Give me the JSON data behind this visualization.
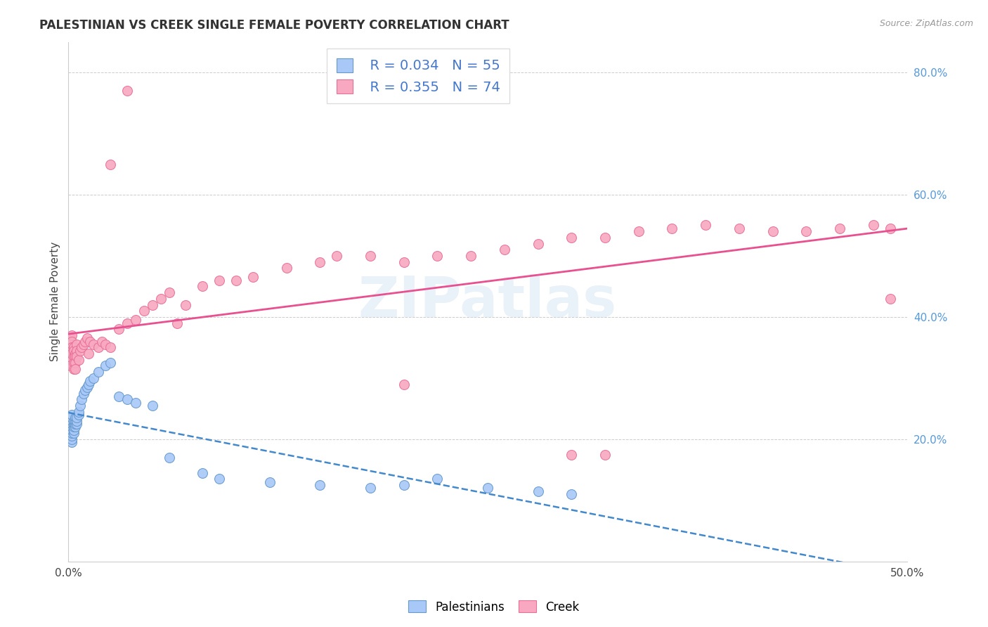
{
  "title": "PALESTINIAN VS CREEK SINGLE FEMALE POVERTY CORRELATION CHART",
  "source": "Source: ZipAtlas.com",
  "ylabel": "Single Female Poverty",
  "right_ytick_vals": [
    0.2,
    0.4,
    0.6,
    0.8
  ],
  "right_ytick_labels": [
    "20.0%",
    "40.0%",
    "60.0%",
    "80.0%"
  ],
  "xlim": [
    0.0,
    0.5
  ],
  "ylim": [
    0.0,
    0.85
  ],
  "palestinians_color": "#a8c8f8",
  "creek_color": "#f8a8c0",
  "palestinians_edge_color": "#6699cc",
  "creek_edge_color": "#e87098",
  "palestinians_line_color": "#4488cc",
  "creek_line_color": "#e85090",
  "watermark": "ZIPatlas",
  "legend_line1": "R = 0.034   N = 55",
  "legend_line2": "R = 0.355   N = 74",
  "pal_x": [
    0.001,
    0.001,
    0.001,
    0.001,
    0.001,
    0.002,
    0.002,
    0.002,
    0.002,
    0.002,
    0.002,
    0.002,
    0.002,
    0.002,
    0.002,
    0.003,
    0.003,
    0.003,
    0.003,
    0.003,
    0.004,
    0.004,
    0.004,
    0.004,
    0.005,
    0.005,
    0.005,
    0.006,
    0.006,
    0.007,
    0.008,
    0.009,
    0.01,
    0.011,
    0.012,
    0.013,
    0.015,
    0.018,
    0.022,
    0.025,
    0.03,
    0.035,
    0.04,
    0.05,
    0.06,
    0.08,
    0.09,
    0.12,
    0.15,
    0.18,
    0.2,
    0.22,
    0.25,
    0.28,
    0.3
  ],
  "pal_y": [
    0.215,
    0.22,
    0.225,
    0.23,
    0.235,
    0.195,
    0.2,
    0.205,
    0.21,
    0.215,
    0.22,
    0.225,
    0.23,
    0.235,
    0.24,
    0.21,
    0.215,
    0.22,
    0.225,
    0.23,
    0.22,
    0.225,
    0.23,
    0.235,
    0.225,
    0.23,
    0.235,
    0.24,
    0.245,
    0.255,
    0.265,
    0.275,
    0.28,
    0.285,
    0.29,
    0.295,
    0.3,
    0.31,
    0.32,
    0.325,
    0.27,
    0.265,
    0.26,
    0.255,
    0.17,
    0.145,
    0.135,
    0.13,
    0.125,
    0.12,
    0.125,
    0.135,
    0.12,
    0.115,
    0.11
  ],
  "creek_x": [
    0.001,
    0.001,
    0.001,
    0.001,
    0.001,
    0.002,
    0.002,
    0.002,
    0.002,
    0.002,
    0.003,
    0.003,
    0.003,
    0.003,
    0.003,
    0.004,
    0.004,
    0.004,
    0.004,
    0.005,
    0.005,
    0.005,
    0.006,
    0.007,
    0.008,
    0.009,
    0.01,
    0.011,
    0.012,
    0.013,
    0.015,
    0.018,
    0.02,
    0.022,
    0.025,
    0.03,
    0.035,
    0.04,
    0.045,
    0.05,
    0.055,
    0.06,
    0.065,
    0.07,
    0.08,
    0.09,
    0.1,
    0.11,
    0.13,
    0.15,
    0.16,
    0.18,
    0.2,
    0.22,
    0.24,
    0.26,
    0.28,
    0.3,
    0.32,
    0.34,
    0.36,
    0.38,
    0.4,
    0.42,
    0.44,
    0.46,
    0.48,
    0.49,
    0.035,
    0.025,
    0.2,
    0.3,
    0.49,
    0.32
  ],
  "creek_y": [
    0.365,
    0.355,
    0.34,
    0.33,
    0.32,
    0.37,
    0.36,
    0.35,
    0.345,
    0.34,
    0.35,
    0.345,
    0.335,
    0.325,
    0.315,
    0.34,
    0.335,
    0.325,
    0.315,
    0.355,
    0.345,
    0.335,
    0.33,
    0.345,
    0.35,
    0.355,
    0.36,
    0.365,
    0.34,
    0.36,
    0.355,
    0.35,
    0.36,
    0.355,
    0.35,
    0.38,
    0.39,
    0.395,
    0.41,
    0.42,
    0.43,
    0.44,
    0.39,
    0.42,
    0.45,
    0.46,
    0.46,
    0.465,
    0.48,
    0.49,
    0.5,
    0.5,
    0.49,
    0.5,
    0.5,
    0.51,
    0.52,
    0.53,
    0.53,
    0.54,
    0.545,
    0.55,
    0.545,
    0.54,
    0.54,
    0.545,
    0.55,
    0.545,
    0.77,
    0.65,
    0.29,
    0.175,
    0.43,
    0.175
  ]
}
